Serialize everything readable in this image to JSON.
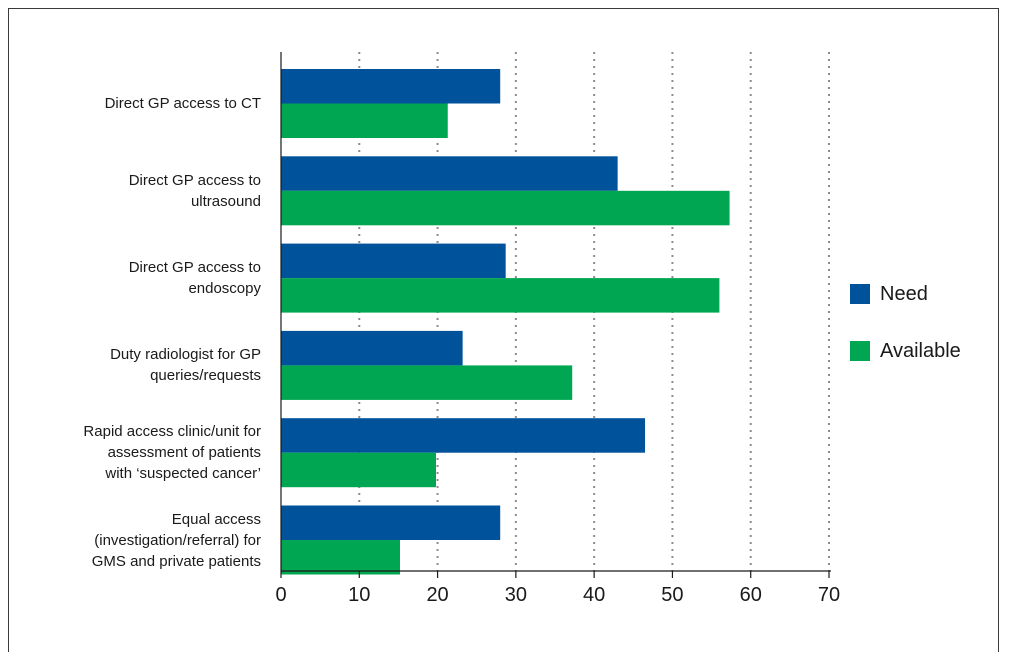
{
  "chart_data": {
    "type": "bar",
    "orientation": "horizontal",
    "categories": [
      "Direct GP access to CT",
      "Direct GP access to\nultrasound",
      "Direct GP access to\nendoscopy",
      "Duty radiologist for GP\nqueries/requests",
      "Rapid access clinic/unit for\nassessment of patients\nwith ‘suspected cancer’",
      "Equal access\n(investigation/referral) for\nGMS and private patients"
    ],
    "series": [
      {
        "name": "Need",
        "color": "#00529b",
        "values": [
          28,
          43,
          28.7,
          23.2,
          46.5,
          28
        ]
      },
      {
        "name": "Available",
        "color": "#00a651",
        "values": [
          21.3,
          57.3,
          56,
          37.2,
          19.8,
          15.2
        ]
      }
    ],
    "xlim": [
      0,
      70
    ],
    "xticks": [
      "0",
      "10",
      "20",
      "30",
      "40",
      "50",
      "60",
      "70"
    ],
    "grid": "vertical dotted",
    "legend_position": "right",
    "title": "",
    "xlabel": "",
    "ylabel": ""
  }
}
